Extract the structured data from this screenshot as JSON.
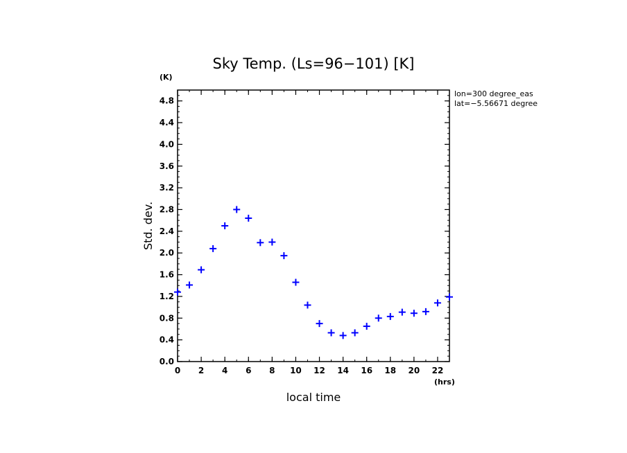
{
  "chart_data": {
    "type": "scatter",
    "title": "Sky Temp. (Ls=96−101) [K]",
    "xlabel": "local time",
    "ylabel": "Std. dev.",
    "x_unit": "(hrs)",
    "y_unit": "(K)",
    "xlim": [
      0,
      23
    ],
    "ylim": [
      0,
      5.0
    ],
    "x_ticks": [
      0,
      2,
      4,
      6,
      8,
      10,
      12,
      14,
      16,
      18,
      20,
      22
    ],
    "y_ticks": [
      0.0,
      0.4,
      0.8,
      1.2,
      1.6,
      2.0,
      2.4,
      2.8,
      3.2,
      3.6,
      4.0,
      4.4,
      4.8
    ],
    "x_tick_labels": [
      "0",
      "2",
      "4",
      "6",
      "8",
      "10",
      "12",
      "14",
      "16",
      "18",
      "20",
      "22"
    ],
    "y_tick_labels": [
      "0.0",
      "0.4",
      "0.8",
      "1.2",
      "1.6",
      "2.0",
      "2.4",
      "2.8",
      "3.2",
      "3.6",
      "4.0",
      "4.4",
      "4.8"
    ],
    "annotations": [
      "lon=300 degree_eas",
      "lat=−5.56671 degree"
    ],
    "grid": false,
    "marker_color": "#0000ff",
    "series": [
      {
        "x": [
          0,
          1,
          2,
          3,
          4,
          5,
          6,
          7,
          8,
          9,
          10,
          11,
          12,
          13,
          14,
          15,
          16,
          17,
          18,
          19,
          20,
          21,
          22,
          23
        ],
        "y": [
          1.28,
          1.41,
          1.69,
          2.08,
          2.5,
          2.8,
          2.64,
          2.19,
          2.2,
          1.95,
          1.46,
          1.04,
          0.7,
          0.53,
          0.48,
          0.53,
          0.65,
          0.8,
          0.83,
          0.91,
          0.89,
          0.92,
          1.08,
          1.19
        ]
      }
    ]
  }
}
